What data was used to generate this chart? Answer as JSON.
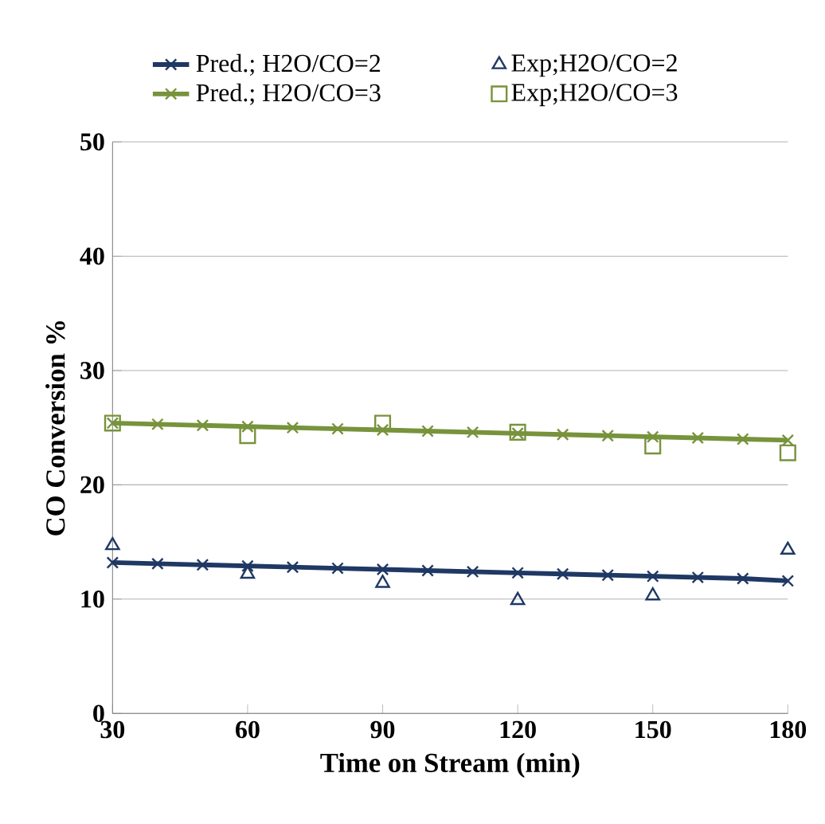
{
  "chart_data": {
    "type": "line",
    "xlabel": "Time on Stream (min)",
    "ylabel": "CO Conversion %",
    "xlim": [
      30,
      180
    ],
    "xticks": [
      30,
      60,
      90,
      120,
      150,
      180
    ],
    "ylim": [
      0,
      50
    ],
    "yticks": [
      0,
      10,
      20,
      30,
      40,
      50
    ],
    "grid": "y",
    "legend": "top",
    "series": [
      {
        "name": "Pred.; H2O/CO=2",
        "marker": "cross",
        "color": "#1f3864",
        "x": [
          30,
          40,
          50,
          60,
          70,
          80,
          90,
          100,
          110,
          120,
          130,
          140,
          150,
          160,
          170,
          180
        ],
        "values": [
          13.2,
          13.1,
          13.0,
          12.9,
          12.8,
          12.7,
          12.6,
          12.5,
          12.4,
          12.3,
          12.2,
          12.1,
          12.0,
          11.9,
          11.8,
          11.6
        ]
      },
      {
        "name": "Pred.; H2O/CO=3",
        "marker": "cross",
        "color": "#77933c",
        "x": [
          30,
          40,
          50,
          60,
          70,
          80,
          90,
          100,
          110,
          120,
          130,
          140,
          150,
          160,
          170,
          180
        ],
        "values": [
          25.4,
          25.3,
          25.2,
          25.1,
          25.0,
          24.9,
          24.8,
          24.7,
          24.6,
          24.5,
          24.4,
          24.3,
          24.2,
          24.1,
          24.0,
          23.9
        ]
      },
      {
        "name": "Exp;H2O/CO=2",
        "type": "scatter",
        "marker": "triangle",
        "color": "#1f3864",
        "x": [
          30,
          60,
          90,
          120,
          150,
          180
        ],
        "values": [
          14.7,
          12.2,
          11.4,
          9.9,
          10.3,
          14.3
        ]
      },
      {
        "name": "Exp;H2O/CO=3",
        "type": "scatter",
        "marker": "square",
        "color": "#77933c",
        "x": [
          30,
          60,
          90,
          120,
          150,
          180
        ],
        "values": [
          25.4,
          24.3,
          25.4,
          24.6,
          23.4,
          22.8
        ]
      }
    ]
  }
}
